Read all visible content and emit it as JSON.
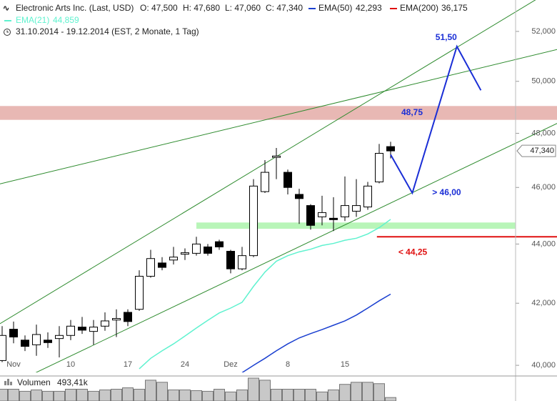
{
  "header": {
    "title": "Electronic Arts Inc. (Last, USD)",
    "open": "O: 47,500",
    "high": "H: 47,680",
    "low": "L: 47,060",
    "close": "C: 47,340",
    "ema50_value": "42,293",
    "ema200_name": "EMA(200)",
    "ema200_color": "#e01010",
    "ema200_value": "36,175",
    "ema21_value": "44,859",
    "range": "31.10.2014 - 19.12.2014 (EST, 2 Monate, 1 Tag)"
  },
  "chart_data": {
    "type": "candlestick",
    "categories": [
      null,
      "Nov",
      null,
      null,
      null,
      null,
      "10",
      null,
      null,
      null,
      null,
      "17",
      null,
      null,
      null,
      null,
      "24",
      null,
      null,
      null,
      "Dez",
      null,
      null,
      null,
      null,
      "8",
      null,
      null,
      null,
      null,
      "15",
      null,
      null,
      null,
      null
    ],
    "open": [
      40150,
      41150,
      40800,
      40650,
      40800,
      40850,
      40950,
      41220,
      41080,
      41250,
      41450,
      41700,
      41800,
      42900,
      43350,
      43450,
      43650,
      43680,
      43900,
      44080,
      43750,
      43150,
      43600,
      45850,
      47100,
      46550,
      45750,
      45350,
      44950,
      44900,
      44950,
      45150,
      45300,
      46200,
      47500
    ],
    "high": [
      41250,
      41400,
      40950,
      41300,
      41050,
      41250,
      41450,
      41550,
      41450,
      41700,
      41800,
      41800,
      43100,
      43800,
      43550,
      43900,
      43850,
      44250,
      44000,
      44150,
      43800,
      43900,
      46300,
      47000,
      47450,
      46650,
      45950,
      45400,
      45700,
      45650,
      46400,
      46300,
      46200,
      47600,
      47680
    ],
    "low": [
      40100,
      40700,
      40450,
      40300,
      40550,
      40250,
      40800,
      41000,
      40650,
      41100,
      40900,
      41250,
      41750,
      42850,
      43100,
      43300,
      43450,
      43600,
      43600,
      43800,
      43000,
      43100,
      43550,
      45800,
      46300,
      45750,
      44700,
      44500,
      44650,
      44450,
      44800,
      44950,
      45200,
      46150,
      47060
    ],
    "close": [
      40950,
      40900,
      40600,
      40980,
      40720,
      40950,
      41250,
      41120,
      41220,
      41420,
      41500,
      41400,
      42900,
      43500,
      43200,
      43550,
      43700,
      44000,
      43680,
      43900,
      43150,
      43600,
      46050,
      46550,
      47150,
      46000,
      45600,
      44650,
      45100,
      44850,
      45350,
      45350,
      46050,
      47250,
      47340
    ],
    "up_color": "#ffffff",
    "down_color": "#000000",
    "log_scale": true,
    "ylim": [
      39800,
      53300
    ],
    "yticks": [
      {
        "value": 40000,
        "label": "40,000"
      },
      {
        "value": 42000,
        "label": "42,000"
      },
      {
        "value": 44000,
        "label": "44,000"
      },
      {
        "value": 46000,
        "label": "46,000"
      },
      {
        "value": 48000,
        "label": "48,000"
      },
      {
        "value": 50000,
        "label": "50,000"
      },
      {
        "value": 52000,
        "label": "52,000"
      }
    ],
    "last_price": {
      "value": 47340,
      "label": "47,340"
    },
    "series": [
      {
        "name": "EMA(21)",
        "color": "#5ff2cf",
        "values": [
          null,
          null,
          null,
          null,
          null,
          null,
          null,
          null,
          null,
          null,
          null,
          null,
          39890,
          40220,
          40460,
          40680,
          40930,
          41190,
          41440,
          41680,
          41840,
          42030,
          42560,
          43040,
          43410,
          43600,
          43730,
          43820,
          43950,
          44020,
          44130,
          44200,
          44350,
          44570,
          44860
        ]
      },
      {
        "name": "EMA(50)",
        "color": "#1a3fd0",
        "values": [
          null,
          null,
          null,
          null,
          null,
          null,
          null,
          null,
          null,
          null,
          null,
          null,
          null,
          null,
          null,
          null,
          null,
          null,
          null,
          null,
          null,
          39770,
          40000,
          40220,
          40460,
          40680,
          40870,
          41010,
          41140,
          41280,
          41420,
          41610,
          41840,
          42080,
          42300
        ]
      }
    ],
    "trendlines": [
      {
        "color": "#2e8b2e",
        "x": [
          -0.19,
          46.8
        ],
        "values": [
          41330,
          53340
        ]
      },
      {
        "color": "#2e8b2e",
        "x": [
          2.3,
          48.6
        ],
        "values": [
          39660,
          48380
        ]
      },
      {
        "color": "#2e8b2e",
        "x": [
          -0.19,
          48.6
        ],
        "values": [
          46130,
          51270
        ]
      }
    ],
    "zones": [
      {
        "color": "#e8b8b4",
        "x": [
          -0.19,
          48.6
        ],
        "values": [
          48510,
          49040
        ],
        "label": "48,75",
        "label_color": "#1a2ed6"
      },
      {
        "color": "#b8f5b8",
        "x": [
          17,
          44.9
        ],
        "values": [
          44530,
          44750
        ]
      }
    ],
    "levels": [
      {
        "color": "#e01010",
        "x": 32.8,
        "value": 44250,
        "label": "< 44,25"
      }
    ],
    "projection": {
      "color": "#1a2ed6",
      "x": [
        34,
        35.9,
        39.8,
        41.9
      ],
      "values": [
        47200,
        45800,
        51390,
        49650
      ],
      "trough_label": "> 46,00",
      "peak_label": "51,50"
    },
    "volume": {
      "name": "Volumen",
      "label": "493,41k",
      "color": "#c8c8c8",
      "ylim": [
        0,
        3400
      ],
      "values": [
        1700,
        1700,
        1400,
        1600,
        1400,
        1400,
        1700,
        1700,
        1400,
        1600,
        1700,
        1900,
        1700,
        3000,
        2700,
        1600,
        1600,
        1500,
        1400,
        1700,
        1300,
        1600,
        3300,
        3000,
        1700,
        1700,
        1700,
        1700,
        1300,
        1600,
        2400,
        2700,
        2700,
        2500,
        500
      ]
    }
  }
}
